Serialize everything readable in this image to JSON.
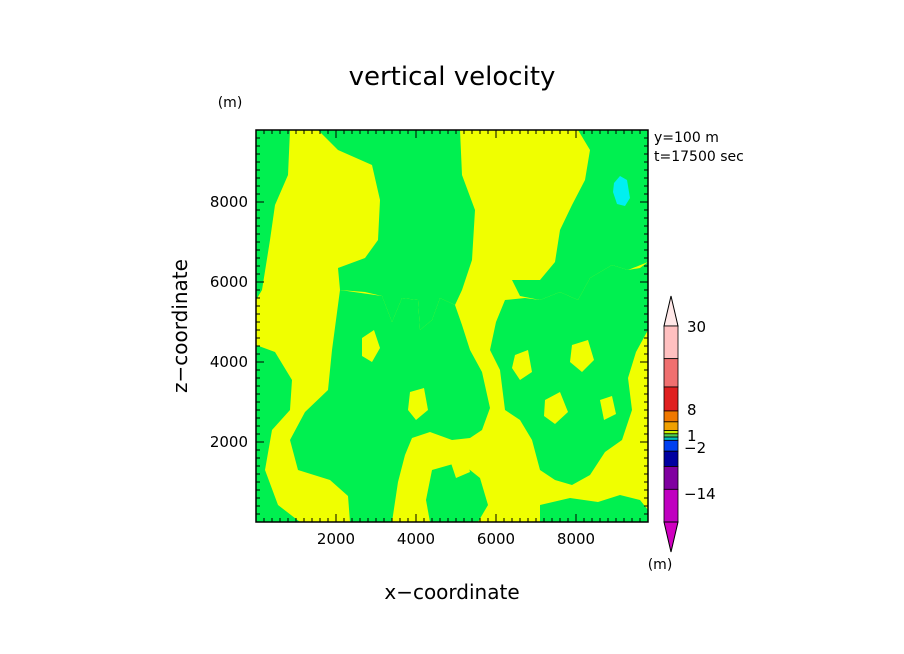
{
  "chart_data": {
    "type": "heatmap",
    "title": "vertical velocity",
    "xlabel": "x−coordinate",
    "ylabel": "z−coordinate",
    "y_unit": "(m)",
    "colorbar_unit": "(m)",
    "xlim": [
      0,
      9800
    ],
    "ylim": [
      0,
      9800
    ],
    "xticks": [
      "2000",
      "4000",
      "6000",
      "8000"
    ],
    "yticks": [
      "2000",
      "4000",
      "6000",
      "8000"
    ],
    "xtick_values": [
      2000,
      4000,
      6000,
      8000
    ],
    "ytick_values": [
      2000,
      4000,
      6000,
      8000
    ],
    "annotations": [
      "y=100 m",
      "t=17500 sec"
    ],
    "colorbar": {
      "labels": [
        "30",
        "8",
        "1",
        "−2",
        "−14"
      ],
      "colors": [
        "#ffc0c0",
        "#f07070",
        "#e02020",
        "#f07800",
        "#f0a000",
        "#c8f000",
        "#50d050",
        "#00c0c0",
        "#0040f0",
        "#0000a0",
        "#8000a0",
        "#c000c0"
      ],
      "max_arrow_color": "#ffe8e8",
      "min_arrow_color": "#d000c0"
    },
    "field_colors": {
      "positive_weak": "#f0ff00",
      "negative_weak": "#00f050",
      "negative_moderate": "#00f0f0"
    }
  }
}
